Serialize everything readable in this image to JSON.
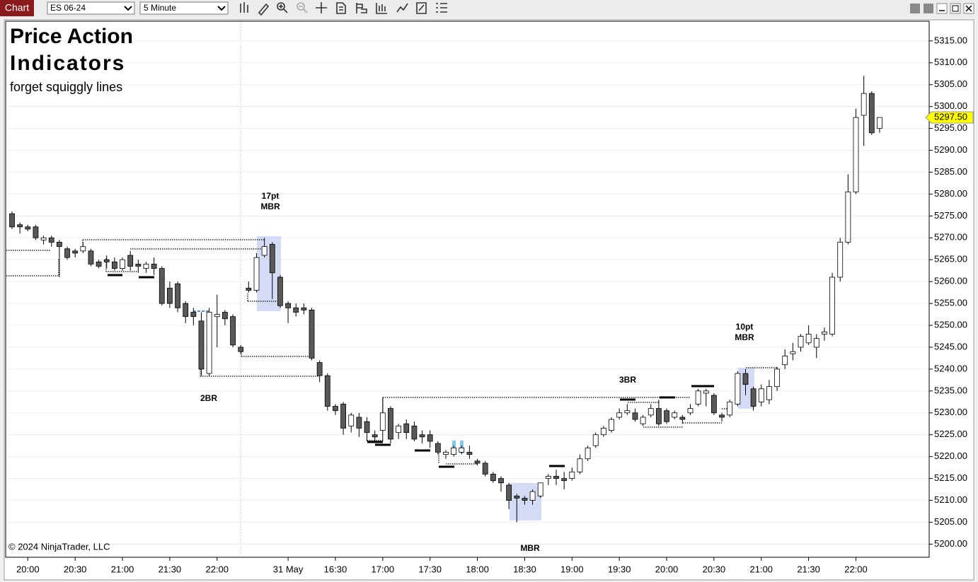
{
  "chart_data": {
    "type": "candlestick",
    "toolbar": {
      "tab": "Chart",
      "instrument": "ES 06-24",
      "interval": "5 Minute"
    },
    "title": "Price Action",
    "title_line_2": "Indicators",
    "subtitle": "forget squiggly lines",
    "copyright": "© 2024 NinjaTrader, LLC",
    "annotations": [
      [
        "17pt",
        "MBR"
      ],
      [
        "2BR"
      ],
      [
        "MBR"
      ],
      [
        "3BR"
      ],
      [
        "10pt",
        "MBR"
      ]
    ],
    "up_color": "#ffffff",
    "down_color": "#595959",
    "last_price": {
      "value": 5297.5,
      "label": "5297.50",
      "color": "#ffff00"
    },
    "categories": [
      null,
      null,
      "20:00",
      null,
      null,
      null,
      null,
      null,
      "20:30",
      null,
      null,
      null,
      null,
      null,
      "21:00",
      null,
      null,
      null,
      null,
      null,
      "21:30",
      null,
      null,
      null,
      null,
      null,
      "22:00",
      null,
      null,
      null,
      null,
      null,
      null,
      null,
      null,
      "31 May",
      null,
      null,
      null,
      null,
      null,
      "16:30",
      null,
      null,
      null,
      null,
      null,
      "17:00",
      null,
      null,
      null,
      null,
      null,
      "17:30",
      null,
      null,
      null,
      null,
      null,
      "18:00",
      null,
      null,
      null,
      null,
      null,
      "18:30",
      null,
      null,
      null,
      null,
      null,
      "19:00",
      null,
      null,
      null,
      null,
      null,
      "19:30",
      null,
      null,
      null,
      null,
      null,
      "20:00",
      null,
      null,
      null,
      null,
      null,
      "20:30",
      null,
      null,
      null,
      null,
      null,
      "21:00",
      null,
      null,
      null,
      null,
      null,
      "21:30",
      null,
      null,
      null,
      null,
      null,
      "22:00",
      null,
      null,
      null
    ],
    "open": [
      5275.5,
      5273,
      5272.5,
      5272.5,
      5269.5,
      5270,
      5269,
      5267.5,
      5267,
      5267,
      5267,
      5264.5,
      5265,
      5264.5,
      5263,
      5266,
      5264,
      5263,
      5264,
      5263,
      5258.5,
      5259.5,
      5255,
      5253,
      5251,
      5239,
      5252,
      5253,
      5252,
      5245,
      5258.5,
      5258,
      5266,
      5268.5,
      5261,
      5255,
      5254,
      5254,
      5253.5,
      5241.5,
      5238.5,
      5231.5,
      5232,
      5227,
      5229,
      5228,
      5225,
      5226,
      5231,
      5225.5,
      5227.5,
      5227,
      5225,
      5225,
      5223,
      5220.5,
      5220.5,
      5221,
      5221,
      5219,
      5218.5,
      5216,
      5215,
      5213.5,
      5211,
      5210.5,
      5210,
      5211,
      5215,
      5215.5,
      5215,
      5215,
      5216.5,
      5219.5,
      5222.5,
      5225,
      5226,
      5229,
      5230,
      5230,
      5227.5,
      5229.5,
      5231,
      5230.5,
      5229,
      5229,
      5230,
      5232,
      5234.5,
      5234,
      5229.5,
      5229.5,
      5232,
      5239,
      5235.5,
      5232.5,
      5233,
      5236,
      5241,
      5243.5,
      5245,
      5246,
      5245,
      5248,
      5248,
      5261,
      5269,
      5280.5,
      5298,
      5303,
      5295
    ],
    "high": [
      5276,
      5273.5,
      5273,
      5273,
      5270.5,
      5270.5,
      5269.5,
      5268,
      5267.5,
      5269,
      5267.5,
      5265,
      5266,
      5265.5,
      5265.5,
      5267,
      5265,
      5264.5,
      5265.5,
      5263.5,
      5260,
      5260,
      5255.5,
      5254,
      5253,
      5254,
      5257,
      5253.5,
      5252.5,
      5245.5,
      5260,
      5266.5,
      5270,
      5269,
      5261.5,
      5255.5,
      5255,
      5255,
      5254,
      5242,
      5239,
      5232,
      5232.5,
      5230,
      5230,
      5229,
      5226,
      5233.5,
      5231.5,
      5227.5,
      5228.5,
      5228,
      5226,
      5226,
      5223.5,
      5221.5,
      5222.5,
      5222.5,
      5222.5,
      5219.5,
      5219,
      5216.5,
      5215.5,
      5214,
      5211.5,
      5211,
      5212.5,
      5214,
      5216,
      5217,
      5216.5,
      5217.5,
      5220.5,
      5222.5,
      5225.5,
      5227,
      5229,
      5231,
      5232,
      5231,
      5229.5,
      5232,
      5233,
      5231,
      5230.5,
      5229.5,
      5232,
      5235.5,
      5235.5,
      5234.5,
      5230,
      5233,
      5239.5,
      5240,
      5236,
      5236.5,
      5237.5,
      5240.5,
      5244.5,
      5246,
      5248,
      5250,
      5248,
      5249.5,
      5262,
      5270,
      5284.5,
      5299.5,
      5307,
      5303.5,
      5297.5
    ],
    "low": [
      5272,
      5271,
      5271.5,
      5269.5,
      5268.5,
      5268,
      5261,
      5265,
      5265.5,
      5266.5,
      5263.5,
      5263,
      5263,
      5262.5,
      5262.5,
      5262.5,
      5262,
      5262,
      5261.5,
      5254.5,
      5254,
      5253,
      5250.5,
      5250,
      5238.5,
      5238.5,
      5245,
      5250,
      5245,
      5243.5,
      5257.5,
      5257.5,
      5265.5,
      5256,
      5254,
      5250.5,
      5252,
      5252.5,
      5242,
      5237,
      5230.5,
      5229.5,
      5225,
      5225.5,
      5224.5,
      5223.5,
      5223.5,
      5223.5,
      5223,
      5224,
      5224,
      5223.5,
      5223,
      5222,
      5220.5,
      5219.5,
      5220,
      5220.5,
      5219.5,
      5218,
      5215.5,
      5214,
      5212,
      5208,
      5205,
      5209,
      5209,
      5210.5,
      5213.5,
      5213.5,
      5212.5,
      5214.5,
      5216,
      5219,
      5222,
      5224.5,
      5225.5,
      5228.5,
      5229.5,
      5228,
      5227,
      5229,
      5227,
      5227.5,
      5228.5,
      5227.5,
      5229.5,
      5231.5,
      5231.5,
      5229.5,
      5228,
      5229,
      5231.5,
      5234,
      5230.5,
      5231.5,
      5232,
      5235,
      5240,
      5242,
      5244,
      5245.5,
      5242.5,
      5246.5,
      5247.5,
      5260,
      5268.5,
      5280,
      5291,
      5293.5,
      5294
    ],
    "close": [
      5272.5,
      5272.5,
      5272,
      5270,
      5270,
      5269,
      5268,
      5265.5,
      5266.5,
      5268,
      5264,
      5263.5,
      5264.5,
      5263,
      5265,
      5263.5,
      5263.5,
      5264,
      5263,
      5255,
      5255,
      5254,
      5252,
      5252,
      5240,
      5253,
      5252.5,
      5251.5,
      5245.5,
      5244,
      5258,
      5265.5,
      5268,
      5262,
      5254.5,
      5254,
      5253,
      5253.5,
      5242.5,
      5238.5,
      5231.5,
      5230.5,
      5226.5,
      5229.5,
      5226.5,
      5225.5,
      5224.5,
      5230,
      5224,
      5227,
      5225.5,
      5224,
      5224.5,
      5223.5,
      5221,
      5221,
      5222,
      5222,
      5220.5,
      5218.5,
      5216,
      5214.5,
      5214,
      5210,
      5210.5,
      5210,
      5212,
      5214,
      5215.5,
      5215,
      5214.5,
      5216.5,
      5219.5,
      5222,
      5225,
      5226.5,
      5228.5,
      5230,
      5230.5,
      5228.5,
      5229,
      5231,
      5227.5,
      5228,
      5230,
      5228.5,
      5231,
      5235,
      5235,
      5230,
      5229,
      5232.5,
      5239,
      5236.5,
      5231.5,
      5235.5,
      5236,
      5240,
      5243,
      5244,
      5247.5,
      5248,
      5247,
      5248.5,
      5261,
      5269,
      5280.5,
      5297.5,
      5303,
      5294,
      5297.5
    ],
    "ylim": [
      5197,
      5319.5
    ],
    "yticks": [
      {
        "value": 5200,
        "label": "5200.00"
      },
      {
        "value": 5205,
        "label": "5205.00"
      },
      {
        "value": 5210,
        "label": "5210.00"
      },
      {
        "value": 5215,
        "label": "5215.00"
      },
      {
        "value": 5220,
        "label": "5220.00"
      },
      {
        "value": 5225,
        "label": "5225.00"
      },
      {
        "value": 5230,
        "label": "5230.00"
      },
      {
        "value": 5235,
        "label": "5235.00"
      },
      {
        "value": 5240,
        "label": "5240.00"
      },
      {
        "value": 5245,
        "label": "5245.00"
      },
      {
        "value": 5250,
        "label": "5250.00"
      },
      {
        "value": 5255,
        "label": "5255.00"
      },
      {
        "value": 5260,
        "label": "5260.00"
      },
      {
        "value": 5265,
        "label": "5265.00"
      },
      {
        "value": 5270,
        "label": "5270.00"
      },
      {
        "value": 5275,
        "label": "5275.00"
      },
      {
        "value": 5280,
        "label": "5280.00"
      },
      {
        "value": 5285,
        "label": "5285.00"
      },
      {
        "value": 5290,
        "label": "5290.00"
      },
      {
        "value": 5295,
        "label": "5295.00"
      },
      {
        "value": 5300,
        "label": "5300.00"
      },
      {
        "value": 5305,
        "label": "5305.00"
      },
      {
        "value": 5310,
        "label": "5310.00"
      },
      {
        "value": 5315,
        "label": "5315.00"
      }
    ],
    "grid": true
  }
}
